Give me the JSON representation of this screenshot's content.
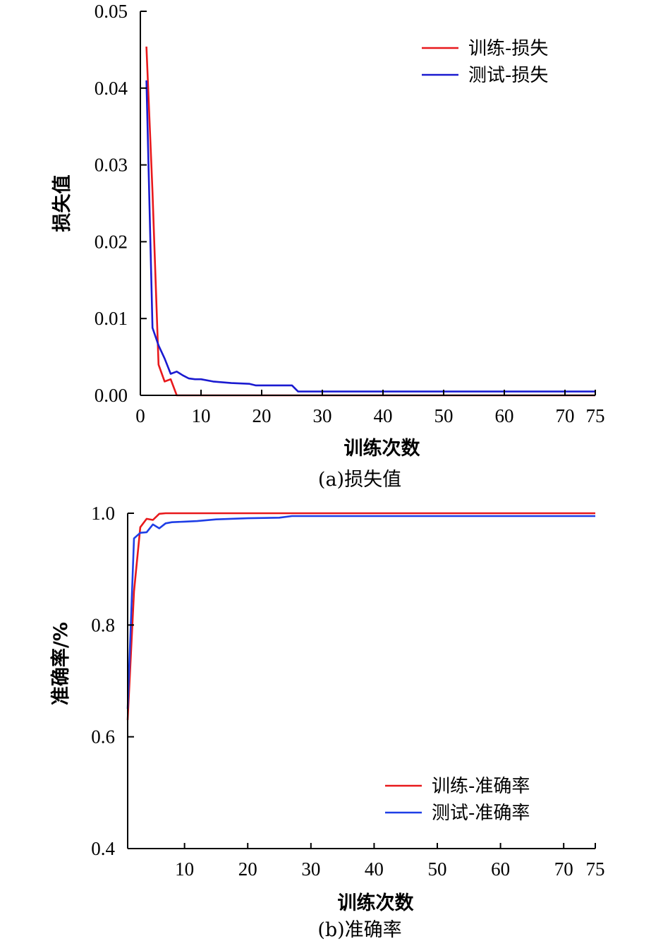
{
  "chart_data": [
    {
      "type": "line",
      "caption": "(a)损失值",
      "xlabel": "训练次数",
      "ylabel": "损失值",
      "xlim": [
        0,
        75
      ],
      "ylim": [
        0,
        0.05
      ],
      "xticks": [
        0,
        10,
        20,
        30,
        40,
        50,
        60,
        70,
        75
      ],
      "xtick_labels": [
        "0",
        "10",
        "20",
        "30",
        "40",
        "50",
        "60",
        "70",
        "75"
      ],
      "yticks": [
        0,
        0.01,
        0.02,
        0.03,
        0.04,
        0.05
      ],
      "ytick_labels": [
        "0.00",
        "0.01",
        "0.02",
        "0.03",
        "0.04",
        "0.05"
      ],
      "legend_position": "top-right",
      "grid": false,
      "series": [
        {
          "name": "训练-损失",
          "color": "#e8191c",
          "x": [
            1,
            2,
            3,
            4,
            5,
            6,
            7,
            75
          ],
          "y": [
            0.0454,
            0.0265,
            0.004,
            0.0018,
            0.0021,
            0.0,
            0.0,
            0.0
          ]
        },
        {
          "name": "测试-损失",
          "color": "#1a1ad0",
          "x": [
            1,
            2,
            3,
            4,
            5,
            6,
            7,
            8,
            9,
            10,
            12,
            15,
            18,
            19,
            20,
            22,
            25,
            26,
            30,
            75
          ],
          "y": [
            0.041,
            0.0088,
            0.0065,
            0.0048,
            0.0028,
            0.0031,
            0.0026,
            0.0022,
            0.0021,
            0.0021,
            0.0018,
            0.0016,
            0.0015,
            0.0013,
            0.0013,
            0.0013,
            0.0013,
            0.0005,
            0.0005,
            0.0005
          ]
        }
      ]
    },
    {
      "type": "line",
      "caption": "(b)准确率",
      "xlabel": "训练次数",
      "ylabel": "准确率/%",
      "xlim": [
        1,
        75
      ],
      "ylim": [
        0.4,
        1.0
      ],
      "xticks": [
        10,
        20,
        30,
        40,
        50,
        60,
        70,
        75
      ],
      "xtick_labels": [
        "10",
        "20",
        "30",
        "40",
        "50",
        "60",
        "70",
        "75"
      ],
      "yticks": [
        0.4,
        0.6,
        0.8,
        1.0
      ],
      "ytick_labels": [
        "0.4",
        "0.6",
        "0.8",
        "1.0"
      ],
      "legend_position": "bottom-right",
      "grid": false,
      "series": [
        {
          "name": "训练-准确率",
          "color": "#e8191c",
          "x": [
            1,
            2,
            3,
            4,
            5,
            6,
            7,
            10,
            20,
            30,
            75
          ],
          "y": [
            0.63,
            0.86,
            0.975,
            0.99,
            0.988,
            0.999,
            1.0,
            1.0,
            1.0,
            1.0,
            1.0
          ]
        },
        {
          "name": "测试-准确率",
          "color": "#1e3ee6",
          "x": [
            1,
            2,
            3,
            4,
            5,
            6,
            7,
            8,
            10,
            12,
            15,
            20,
            25,
            27,
            30,
            75
          ],
          "y": [
            0.65,
            0.955,
            0.965,
            0.966,
            0.98,
            0.973,
            0.982,
            0.984,
            0.985,
            0.986,
            0.989,
            0.991,
            0.992,
            0.995,
            0.995,
            0.995
          ]
        }
      ]
    }
  ]
}
